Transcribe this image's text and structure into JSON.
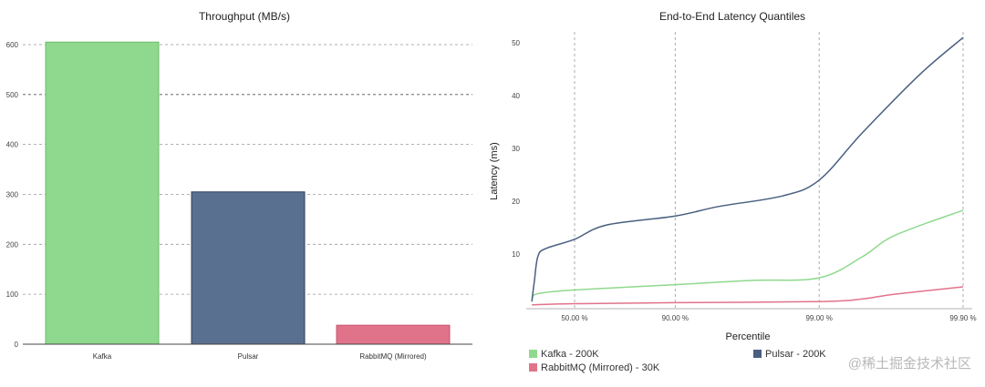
{
  "chart_data": [
    {
      "type": "bar",
      "title": "Throughput (MB/s)",
      "xlabel": "",
      "ylabel": "",
      "categories": [
        "Kafka",
        "Pulsar",
        "RabbitMQ (Mirrored)"
      ],
      "values": [
        605,
        305,
        38
      ],
      "colors": [
        "#8fd98e",
        "#5a7090",
        "#e0738a"
      ],
      "ylim": [
        0,
        620
      ],
      "yticks": [
        0,
        100,
        200,
        300,
        400,
        500,
        600
      ],
      "grid": true
    },
    {
      "type": "line",
      "title": "End-to-End Latency Quantiles",
      "xlabel": "Percentile",
      "ylabel": "Latency (ms)",
      "x_scale": "log-percentile",
      "xticks": [
        "50.00 %",
        "90.00 %",
        "99.00 %",
        "99.90 %"
      ],
      "yticks": [
        10,
        20,
        30,
        40,
        50
      ],
      "ylim": [
        0,
        52
      ],
      "grid": "vertical-dashed",
      "legend_placement": "bottom",
      "series": [
        {
          "name": "Kafka - 200K",
          "color": "#8fd98e",
          "points": [
            [
              1,
              1.5
            ],
            [
              10,
              2.5
            ],
            [
              50,
              3.2
            ],
            [
              90,
              4.2
            ],
            [
              97,
              5.0
            ],
            [
              99,
              5.5
            ],
            [
              99.5,
              9.5
            ],
            [
              99.7,
              13.5
            ],
            [
              99.9,
              18.3
            ]
          ]
        },
        {
          "name": "Pulsar - 200K",
          "color": "#4a5f80",
          "points": [
            [
              1,
              1
            ],
            [
              5,
              5
            ],
            [
              10,
              9.5
            ],
            [
              20,
              11
            ],
            [
              50,
              12.8
            ],
            [
              70,
              15.5
            ],
            [
              90,
              17.2
            ],
            [
              95,
              19
            ],
            [
              98.2,
              21
            ],
            [
              99,
              24
            ],
            [
              99.5,
              33
            ],
            [
              99.8,
              44
            ],
            [
              99.9,
              51
            ]
          ]
        },
        {
          "name": "RabbitMQ (Mirrored) - 30K",
          "color": "#e0738a",
          "points": [
            [
              1,
              0.4
            ],
            [
              50,
              0.6
            ],
            [
              90,
              0.8
            ],
            [
              99,
              1.0
            ],
            [
              99.5,
              1.5
            ],
            [
              99.7,
              2.4
            ],
            [
              99.9,
              3.8
            ]
          ]
        }
      ]
    }
  ],
  "watermark": "@稀土掘金技术社区"
}
